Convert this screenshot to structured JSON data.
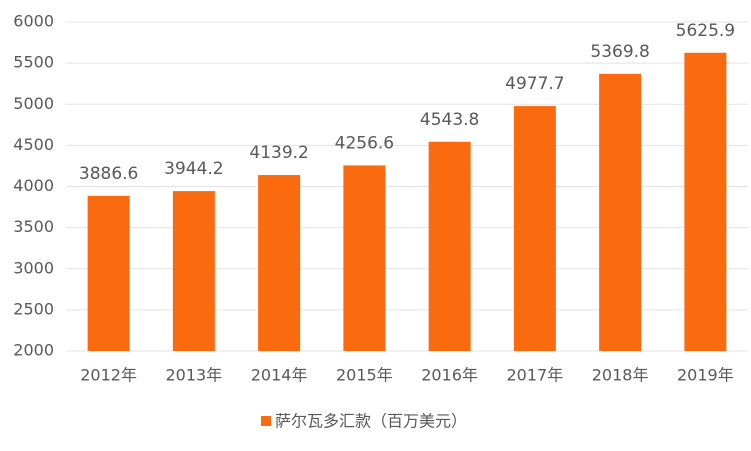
{
  "chart_data": {
    "type": "bar",
    "categories": [
      "2012年",
      "2013年",
      "2014年",
      "2015年",
      "2016年",
      "2017年",
      "2018年",
      "2019年"
    ],
    "series": [
      {
        "name": "萨尔瓦多汇款（百万美元）",
        "color": "#fa6a0e",
        "values": [
          3886.6,
          3944.2,
          4139.2,
          4256.6,
          4543.8,
          4977.7,
          5369.8,
          5625.9
        ]
      }
    ],
    "ylim": [
      2000,
      6000
    ],
    "yticks": [
      2000,
      2500,
      3000,
      3500,
      4000,
      4500,
      5000,
      5500,
      6000
    ],
    "grid": true,
    "legend": "bottom"
  }
}
